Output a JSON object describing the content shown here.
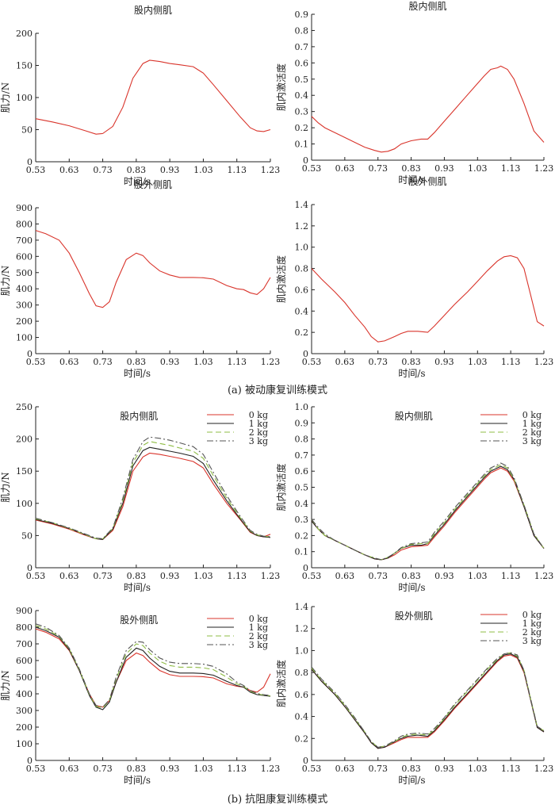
{
  "figure": {
    "caption_a": "(a)  被动康复训练模式",
    "caption_b": "(b)  抗阻康复训练模式"
  },
  "chart_data": [
    {
      "id": "a1",
      "type": "line",
      "title": "股内侧肌",
      "xlabel": "时间/s",
      "ylabel": "肌力/N",
      "xlim": [
        0.53,
        1.23
      ],
      "ylim": [
        0,
        200
      ],
      "xticks": [
        "0.53",
        "0.63",
        "0.73",
        "0.83",
        "0.93",
        "1.03",
        "1.13",
        "1.23"
      ],
      "yticks": [
        "0",
        "50",
        "100",
        "150",
        "200"
      ],
      "x": [
        0.53,
        0.58,
        0.63,
        0.68,
        0.71,
        0.73,
        0.76,
        0.79,
        0.82,
        0.85,
        0.87,
        0.9,
        0.93,
        0.96,
        1.0,
        1.03,
        1.06,
        1.1,
        1.14,
        1.17,
        1.19,
        1.21,
        1.23
      ],
      "series": [
        {
          "color": "#d9342b",
          "values": [
            67,
            62,
            56,
            48,
            43,
            44,
            55,
            85,
            130,
            153,
            158,
            156,
            153,
            151,
            148,
            138,
            120,
            95,
            70,
            53,
            48,
            47,
            50
          ]
        }
      ]
    },
    {
      "id": "a2",
      "type": "line",
      "title": "股内侧肌",
      "xlabel": "时间/s",
      "ylabel": "肌内激活度",
      "xlim": [
        0.53,
        1.23
      ],
      "ylim": [
        0,
        0.9
      ],
      "xticks": [
        "0.53",
        "0.63",
        "0.73",
        "0.83",
        "0.93",
        "1.03",
        "1.13",
        "1.23"
      ],
      "yticks": [
        "0",
        "0.1",
        "0.2",
        "0.3",
        "0.4",
        "0.5",
        "0.6",
        "0.7",
        "0.8",
        "0.9"
      ],
      "x": [
        0.53,
        0.55,
        0.57,
        0.6,
        0.63,
        0.66,
        0.69,
        0.72,
        0.74,
        0.76,
        0.78,
        0.8,
        0.83,
        0.86,
        0.88,
        0.9,
        0.93,
        0.96,
        0.99,
        1.02,
        1.05,
        1.07,
        1.09,
        1.1,
        1.12,
        1.14,
        1.17,
        1.2,
        1.23
      ],
      "series": [
        {
          "color": "#d9342b",
          "values": [
            0.27,
            0.23,
            0.2,
            0.17,
            0.14,
            0.11,
            0.08,
            0.06,
            0.05,
            0.055,
            0.07,
            0.1,
            0.12,
            0.13,
            0.13,
            0.17,
            0.24,
            0.31,
            0.38,
            0.45,
            0.52,
            0.56,
            0.57,
            0.58,
            0.56,
            0.5,
            0.35,
            0.18,
            0.11
          ]
        }
      ]
    },
    {
      "id": "a3",
      "type": "line",
      "title": "股外侧肌",
      "xlabel": "时间/s",
      "ylabel": "肌力/N",
      "xlim": [
        0.53,
        1.23
      ],
      "ylim": [
        0,
        900
      ],
      "xticks": [
        "0.53",
        "0.63",
        "0.73",
        "0.83",
        "0.93",
        "1.03",
        "1.13",
        "1.23"
      ],
      "yticks": [
        "0",
        "100",
        "200",
        "300",
        "400",
        "500",
        "600",
        "700",
        "800",
        "900"
      ],
      "x": [
        0.53,
        0.56,
        0.6,
        0.63,
        0.66,
        0.69,
        0.71,
        0.73,
        0.75,
        0.77,
        0.8,
        0.83,
        0.85,
        0.87,
        0.9,
        0.93,
        0.96,
        1.0,
        1.03,
        1.06,
        1.1,
        1.13,
        1.15,
        1.17,
        1.19,
        1.21,
        1.23
      ],
      "series": [
        {
          "color": "#d9342b",
          "values": [
            760,
            740,
            700,
            620,
            500,
            370,
            295,
            285,
            320,
            440,
            580,
            620,
            605,
            560,
            510,
            485,
            470,
            470,
            468,
            460,
            420,
            400,
            395,
            375,
            365,
            400,
            470
          ]
        }
      ]
    },
    {
      "id": "a4",
      "type": "line",
      "title": "股外侧肌",
      "xlabel": "时间/s",
      "ylabel": "肌内激活度",
      "xlim": [
        0.53,
        1.23
      ],
      "ylim": [
        0,
        1.4
      ],
      "xticks": [
        "0.53",
        "0.63",
        "0.73",
        "0.83",
        "0.93",
        "1.03",
        "1.13",
        "1.23"
      ],
      "yticks": [
        "0",
        "0.2",
        "0.4",
        "0.6",
        "0.8",
        "1.0",
        "1.2",
        "1.4"
      ],
      "x": [
        0.53,
        0.56,
        0.6,
        0.63,
        0.66,
        0.69,
        0.71,
        0.73,
        0.75,
        0.78,
        0.8,
        0.82,
        0.85,
        0.88,
        0.9,
        0.93,
        0.96,
        1.0,
        1.03,
        1.06,
        1.09,
        1.11,
        1.13,
        1.15,
        1.17,
        1.19,
        1.21,
        1.23
      ],
      "series": [
        {
          "color": "#d9342b",
          "values": [
            0.8,
            0.7,
            0.58,
            0.48,
            0.36,
            0.25,
            0.16,
            0.11,
            0.12,
            0.16,
            0.19,
            0.21,
            0.21,
            0.2,
            0.26,
            0.36,
            0.46,
            0.58,
            0.68,
            0.78,
            0.87,
            0.91,
            0.92,
            0.9,
            0.8,
            0.55,
            0.3,
            0.26
          ]
        }
      ]
    },
    {
      "id": "b1",
      "type": "line",
      "title": "股内侧肌",
      "xlabel": "时间/s",
      "ylabel": "肌力/N",
      "xlim": [
        0.53,
        1.23
      ],
      "ylim": [
        0,
        250
      ],
      "xticks": [
        "0.53",
        "0.63",
        "0.73",
        "0.83",
        "0.93",
        "1.03",
        "1.13",
        "1.23"
      ],
      "yticks": [
        "0",
        "50",
        "100",
        "150",
        "200",
        "250"
      ],
      "legend": "top-right",
      "x": [
        0.53,
        0.58,
        0.63,
        0.68,
        0.71,
        0.73,
        0.76,
        0.79,
        0.82,
        0.85,
        0.87,
        0.9,
        0.93,
        0.96,
        1.0,
        1.03,
        1.06,
        1.1,
        1.14,
        1.17,
        1.19,
        1.21,
        1.23
      ],
      "series": [
        {
          "name": "0 kg",
          "color": "#d9342b",
          "dash": "",
          "values": [
            74,
            68,
            60,
            50,
            45,
            44,
            58,
            95,
            150,
            172,
            178,
            176,
            173,
            170,
            165,
            155,
            130,
            100,
            75,
            55,
            50,
            48,
            52
          ]
        },
        {
          "name": "1 kg",
          "color": "#222222",
          "dash": "",
          "values": [
            75,
            69,
            61,
            51,
            45,
            44,
            60,
            100,
            158,
            182,
            187,
            184,
            181,
            178,
            173,
            162,
            136,
            104,
            76,
            56,
            50,
            48,
            47
          ]
        },
        {
          "name": "2 kg",
          "color": "#8fbc45",
          "dash": "7,4",
          "values": [
            76,
            70,
            61,
            51,
            45,
            45,
            61,
            104,
            163,
            190,
            196,
            193,
            190,
            186,
            181,
            170,
            143,
            108,
            78,
            57,
            51,
            49,
            48
          ]
        },
        {
          "name": "3 kg",
          "color": "#555555",
          "dash": "8,3,2,3",
          "values": [
            77,
            70,
            62,
            52,
            46,
            45,
            62,
            108,
            168,
            196,
            203,
            201,
            198,
            194,
            188,
            176,
            148,
            112,
            80,
            58,
            52,
            49,
            48
          ]
        }
      ]
    },
    {
      "id": "b2",
      "type": "line",
      "title": "股内侧肌",
      "xlabel": "时间/s",
      "ylabel": "肌内激活度",
      "xlim": [
        0.53,
        1.23
      ],
      "ylim": [
        0,
        1.0
      ],
      "xticks": [
        "0.53",
        "0.63",
        "0.73",
        "0.83",
        "0.93",
        "1.03",
        "1.13",
        "1.23"
      ],
      "yticks": [
        "0",
        "0.1",
        "0.2",
        "0.3",
        "0.4",
        "0.5",
        "0.6",
        "0.7",
        "0.8",
        "0.9",
        "1.0"
      ],
      "legend": "top-right",
      "x": [
        0.53,
        0.55,
        0.57,
        0.6,
        0.63,
        0.66,
        0.69,
        0.72,
        0.74,
        0.76,
        0.78,
        0.8,
        0.83,
        0.86,
        0.88,
        0.9,
        0.93,
        0.96,
        0.99,
        1.02,
        1.05,
        1.07,
        1.09,
        1.1,
        1.12,
        1.14,
        1.17,
        1.2,
        1.23
      ],
      "series": [
        {
          "name": "0 kg",
          "color": "#d9342b",
          "dash": "",
          "values": [
            0.29,
            0.24,
            0.2,
            0.17,
            0.14,
            0.11,
            0.08,
            0.055,
            0.05,
            0.06,
            0.08,
            0.11,
            0.13,
            0.135,
            0.14,
            0.19,
            0.26,
            0.34,
            0.41,
            0.48,
            0.55,
            0.59,
            0.61,
            0.62,
            0.6,
            0.54,
            0.38,
            0.2,
            0.12
          ]
        },
        {
          "name": "1 kg",
          "color": "#222222",
          "dash": "",
          "values": [
            0.29,
            0.24,
            0.2,
            0.17,
            0.14,
            0.11,
            0.08,
            0.055,
            0.05,
            0.06,
            0.09,
            0.12,
            0.14,
            0.14,
            0.15,
            0.2,
            0.27,
            0.35,
            0.42,
            0.49,
            0.56,
            0.6,
            0.62,
            0.63,
            0.61,
            0.55,
            0.38,
            0.2,
            0.12
          ]
        },
        {
          "name": "2 kg",
          "color": "#8fbc45",
          "dash": "7,4",
          "values": [
            0.3,
            0.24,
            0.2,
            0.17,
            0.14,
            0.11,
            0.08,
            0.06,
            0.05,
            0.065,
            0.09,
            0.12,
            0.145,
            0.15,
            0.15,
            0.21,
            0.28,
            0.36,
            0.43,
            0.5,
            0.57,
            0.61,
            0.63,
            0.64,
            0.62,
            0.55,
            0.39,
            0.21,
            0.12
          ]
        },
        {
          "name": "3 kg",
          "color": "#555555",
          "dash": "8,3,2,3",
          "values": [
            0.3,
            0.25,
            0.21,
            0.17,
            0.14,
            0.11,
            0.08,
            0.06,
            0.05,
            0.065,
            0.09,
            0.125,
            0.15,
            0.155,
            0.16,
            0.22,
            0.29,
            0.37,
            0.44,
            0.51,
            0.58,
            0.62,
            0.64,
            0.65,
            0.63,
            0.56,
            0.39,
            0.21,
            0.12
          ]
        }
      ]
    },
    {
      "id": "b3",
      "type": "line",
      "title": "股外侧肌",
      "xlabel": "时间/s",
      "ylabel": "肌力/N",
      "xlim": [
        0.53,
        1.23
      ],
      "ylim": [
        0,
        900
      ],
      "xticks": [
        "0.53",
        "0.63",
        "0.73",
        "0.83",
        "0.93",
        "1.03",
        "1.13",
        "1.23"
      ],
      "yticks": [
        "0",
        "100",
        "200",
        "300",
        "400",
        "500",
        "600",
        "700",
        "800",
        "900"
      ],
      "legend": "top-right",
      "x": [
        0.53,
        0.56,
        0.6,
        0.63,
        0.66,
        0.69,
        0.71,
        0.73,
        0.75,
        0.77,
        0.8,
        0.83,
        0.85,
        0.87,
        0.9,
        0.93,
        0.96,
        1.0,
        1.03,
        1.06,
        1.1,
        1.13,
        1.15,
        1.17,
        1.19,
        1.21,
        1.23
      ],
      "series": [
        {
          "name": "0 kg",
          "color": "#d9342b",
          "dash": "",
          "values": [
            790,
            770,
            730,
            660,
            540,
            400,
            330,
            320,
            360,
            470,
            600,
            645,
            630,
            590,
            540,
            515,
            505,
            505,
            503,
            495,
            460,
            445,
            440,
            420,
            410,
            440,
            520
          ]
        },
        {
          "name": "1 kg",
          "color": "#222222",
          "dash": "",
          "values": [
            800,
            780,
            740,
            665,
            540,
            390,
            320,
            305,
            350,
            470,
            620,
            675,
            660,
            615,
            565,
            535,
            525,
            525,
            522,
            512,
            475,
            450,
            440,
            410,
            395,
            390,
            385
          ]
        },
        {
          "name": "2 kg",
          "color": "#8fbc45",
          "dash": "7,4",
          "values": [
            810,
            790,
            745,
            670,
            545,
            395,
            325,
            315,
            360,
            490,
            640,
            700,
            690,
            645,
            595,
            570,
            560,
            560,
            556,
            545,
            500,
            460,
            445,
            415,
            400,
            392,
            388
          ]
        },
        {
          "name": "3 kg",
          "color": "#555555",
          "dash": "8,3,2,3",
          "values": [
            820,
            800,
            750,
            675,
            550,
            400,
            330,
            320,
            365,
            500,
            660,
            715,
            710,
            665,
            615,
            590,
            582,
            582,
            578,
            565,
            520,
            470,
            450,
            420,
            402,
            395,
            390
          ]
        }
      ]
    },
    {
      "id": "b4",
      "type": "line",
      "title": "股外侧肌",
      "xlabel": "时间/s",
      "ylabel": "肌内激活度",
      "xlim": [
        0.53,
        1.23
      ],
      "ylim": [
        0,
        1.4
      ],
      "xticks": [
        "0.53",
        "0.63",
        "0.73",
        "0.83",
        "0.93",
        "1.03",
        "1.13",
        "1.23"
      ],
      "yticks": [
        "0",
        "0.2",
        "0.4",
        "0.6",
        "0.8",
        "1.0",
        "1.2",
        "1.4"
      ],
      "legend": "top-right",
      "x": [
        0.53,
        0.56,
        0.6,
        0.63,
        0.66,
        0.69,
        0.71,
        0.73,
        0.75,
        0.78,
        0.8,
        0.82,
        0.85,
        0.88,
        0.9,
        0.93,
        0.96,
        1.0,
        1.03,
        1.06,
        1.09,
        1.11,
        1.13,
        1.15,
        1.17,
        1.19,
        1.21,
        1.23
      ],
      "series": [
        {
          "name": "0 kg",
          "color": "#d9342b",
          "dash": "",
          "values": [
            0.83,
            0.72,
            0.6,
            0.49,
            0.37,
            0.25,
            0.16,
            0.11,
            0.12,
            0.16,
            0.19,
            0.21,
            0.21,
            0.21,
            0.26,
            0.36,
            0.47,
            0.6,
            0.7,
            0.8,
            0.9,
            0.95,
            0.96,
            0.93,
            0.8,
            0.55,
            0.3,
            0.26
          ]
        },
        {
          "name": "1 kg",
          "color": "#222222",
          "dash": "",
          "values": [
            0.83,
            0.72,
            0.6,
            0.49,
            0.37,
            0.25,
            0.16,
            0.11,
            0.12,
            0.17,
            0.2,
            0.22,
            0.23,
            0.22,
            0.27,
            0.37,
            0.48,
            0.61,
            0.71,
            0.81,
            0.91,
            0.96,
            0.97,
            0.94,
            0.81,
            0.55,
            0.3,
            0.26
          ]
        },
        {
          "name": "2 kg",
          "color": "#8fbc45",
          "dash": "7,4",
          "values": [
            0.84,
            0.73,
            0.61,
            0.5,
            0.38,
            0.26,
            0.17,
            0.12,
            0.13,
            0.17,
            0.21,
            0.23,
            0.24,
            0.23,
            0.28,
            0.38,
            0.5,
            0.63,
            0.73,
            0.83,
            0.92,
            0.97,
            0.98,
            0.95,
            0.82,
            0.56,
            0.31,
            0.27
          ]
        },
        {
          "name": "3 kg",
          "color": "#555555",
          "dash": "8,3,2,3",
          "values": [
            0.85,
            0.74,
            0.62,
            0.51,
            0.39,
            0.26,
            0.17,
            0.12,
            0.13,
            0.18,
            0.22,
            0.24,
            0.25,
            0.24,
            0.29,
            0.39,
            0.51,
            0.64,
            0.74,
            0.84,
            0.93,
            0.97,
            0.98,
            0.96,
            0.82,
            0.56,
            0.31,
            0.27
          ]
        }
      ]
    }
  ]
}
